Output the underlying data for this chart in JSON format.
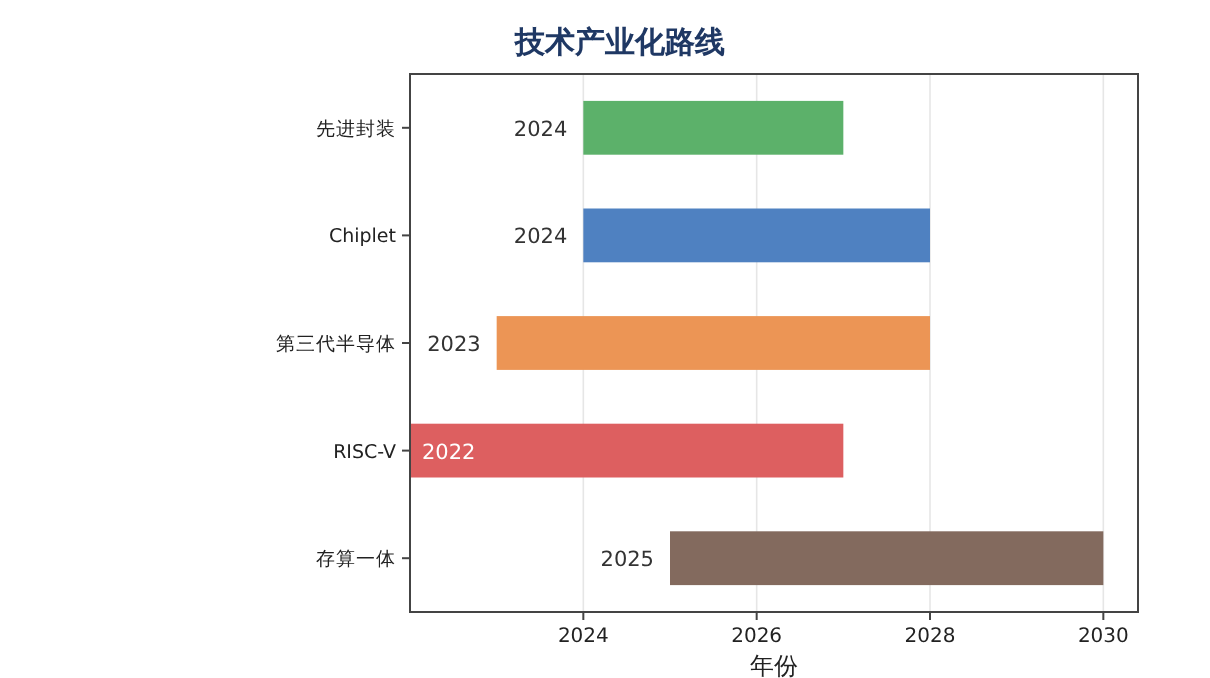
{
  "chart_data": {
    "type": "bar",
    "orientation": "horizontal",
    "title": "技术产业化路线",
    "xlabel": "年份",
    "categories": [
      "先进封装",
      "Chiplet",
      "第三代半导体",
      "RISC-V",
      "存算一体"
    ],
    "values": [
      3,
      4,
      5,
      5,
      5
    ],
    "base": [
      2024,
      2024,
      2023,
      2022,
      2025
    ],
    "colors": [
      "#5cb16a",
      "#4f81c1",
      "#ec9555",
      "#dd5f60",
      "#836a5e"
    ],
    "xlim": [
      2022,
      2030.4
    ],
    "xticks": [
      2024,
      2026,
      2028,
      2030
    ],
    "grid": "x",
    "annotations": [
      {
        "text": "2024",
        "x": 2024,
        "y": "先进封装"
      },
      {
        "text": "2024",
        "x": 2024,
        "y": "Chiplet"
      },
      {
        "text": "2023",
        "x": 2023,
        "y": "第三代半导体"
      },
      {
        "text": "2022",
        "x": 2022,
        "y": "RISC-V"
      },
      {
        "text": "2025",
        "x": 2025,
        "y": "存算一体"
      }
    ]
  }
}
